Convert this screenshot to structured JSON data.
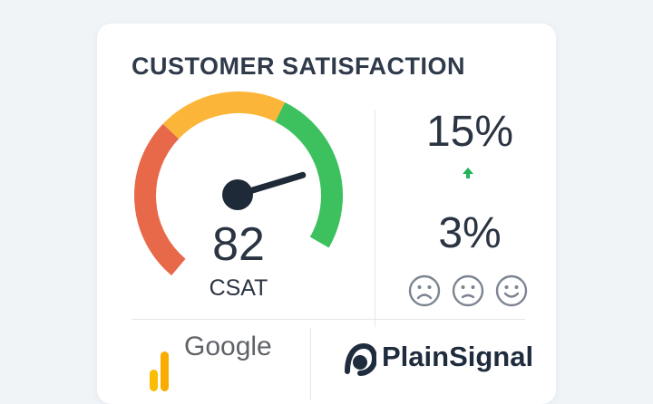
{
  "card": {
    "title": "CUSTOMER SATISFACTION"
  },
  "gauge": {
    "value": "82",
    "label": "CSAT",
    "min": 0,
    "max": 100,
    "colors": {
      "low": "#e8694a",
      "mid": "#fbb63a",
      "high": "#3cc15e",
      "needle": "#1f2a38"
    }
  },
  "stats": {
    "top_value": "15%",
    "trend_icon": "arrow-up-icon",
    "trend_color": "#22b35a",
    "bottom_value": "3%"
  },
  "faces": [
    {
      "icon": "sad-face-icon"
    },
    {
      "icon": "neutral-sad-face-icon"
    },
    {
      "icon": "happy-face-icon"
    }
  ],
  "logos": {
    "google_text": "Google",
    "google_colors": [
      "#fbbc04",
      "#f9ab00"
    ],
    "plainsignal_text": "PlainSignal"
  }
}
